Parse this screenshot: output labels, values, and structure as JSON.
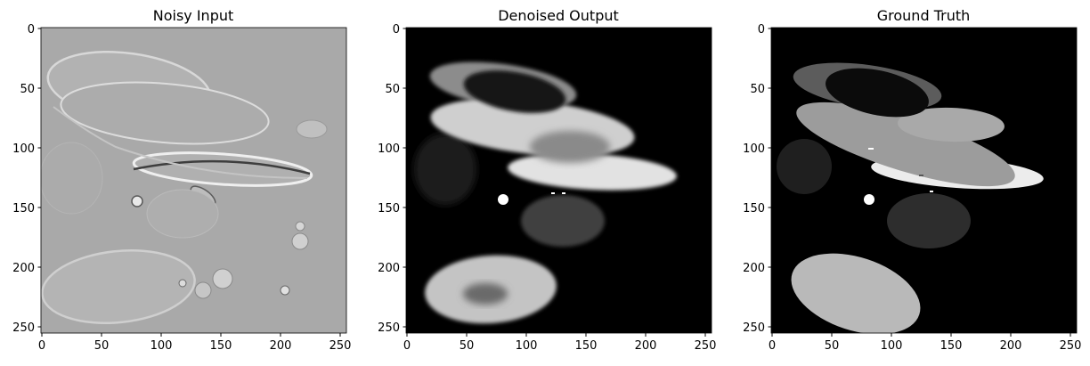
{
  "panels": [
    {
      "title": "Noisy Input",
      "yticks": [
        "0",
        "50",
        "100",
        "150",
        "200",
        "250"
      ],
      "xticks": [
        "0",
        "50",
        "100",
        "150",
        "200",
        "250"
      ]
    },
    {
      "title": "Denoised Output",
      "yticks": [
        "0",
        "50",
        "100",
        "150",
        "200",
        "250"
      ],
      "xticks": [
        "0",
        "50",
        "100",
        "150",
        "200",
        "250"
      ]
    },
    {
      "title": "Ground Truth",
      "yticks": [
        "0",
        "50",
        "100",
        "150",
        "200",
        "250"
      ],
      "xticks": [
        "0",
        "50",
        "100",
        "150",
        "200",
        "250"
      ]
    }
  ],
  "colors": {
    "noisy_bg": "#a9a9a9",
    "dark_bg": "#000000"
  }
}
